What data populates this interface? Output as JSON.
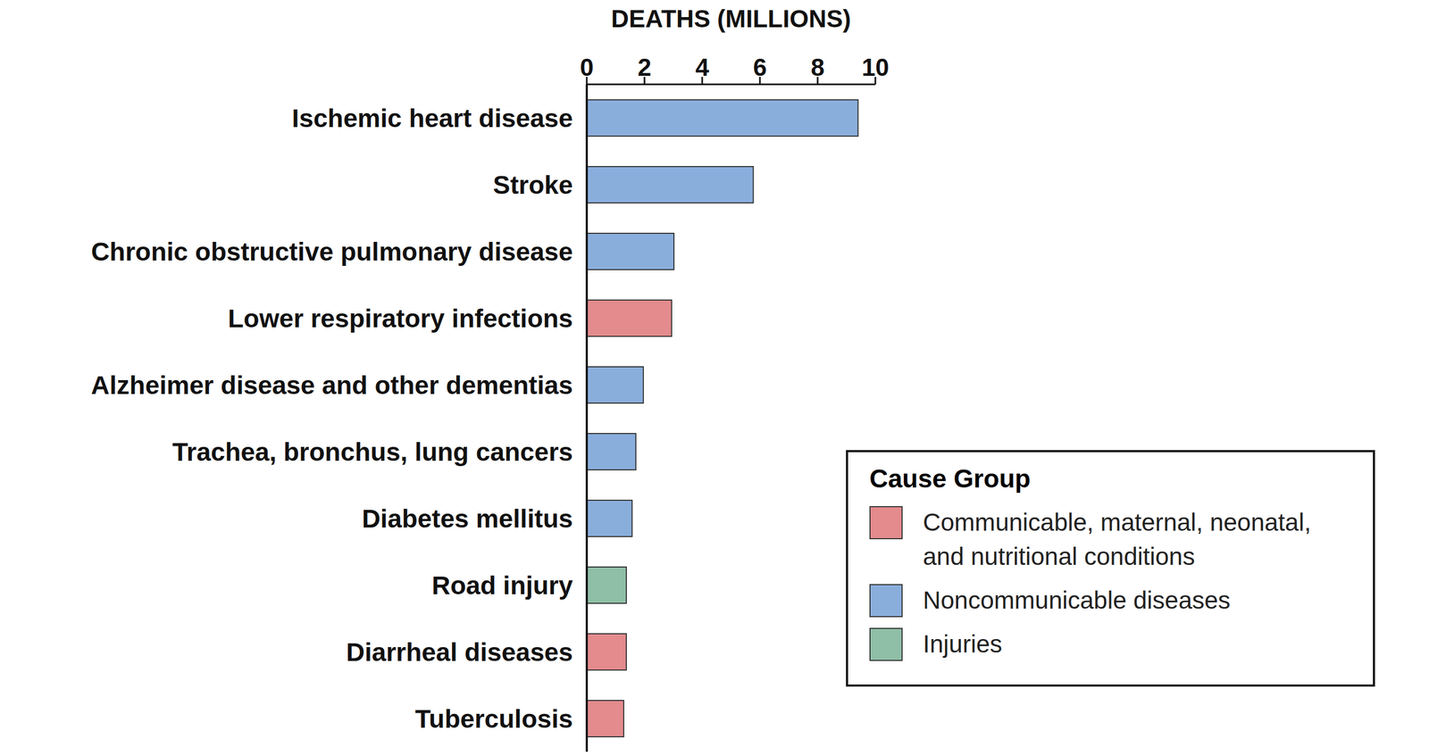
{
  "chart_data": {
    "type": "bar",
    "orientation": "horizontal",
    "stacked": true,
    "x_label": "DEATHS (MILLIONS)",
    "categories": [
      "Ischemic heart disease",
      "Stroke",
      "Chronic obstructive pulmonary disease",
      "Lower respiratory infections",
      "Alzheimer disease and other dementias",
      "Trachea, bronchus, lung cancers",
      "Diabetes mellitus",
      "Road injury",
      "Diarrheal diseases",
      "Tuberculosis"
    ],
    "series": [
      {
        "name": "Communicable, maternal, neonatal, and nutritional conditions",
        "color": "#e38b8d",
        "values": [
          null,
          null,
          null,
          2.94,
          null,
          null,
          null,
          null,
          1.37,
          1.28
        ]
      },
      {
        "name": "Noncommunicable diseases",
        "color": "#8aaedc",
        "values": [
          9.4,
          5.77,
          3.02,
          null,
          1.96,
          1.7,
          1.57,
          null,
          null,
          null
        ]
      },
      {
        "name": "Injuries",
        "color": "#8fbfa7",
        "values": [
          null,
          null,
          null,
          null,
          null,
          null,
          null,
          1.37,
          null,
          null
        ]
      }
    ],
    "xlim": [
      0,
      10
    ],
    "xticks": [
      0,
      2,
      4,
      6,
      8,
      10
    ],
    "grid": false,
    "legend": "bottom right",
    "legend_title": "Cause Group"
  }
}
